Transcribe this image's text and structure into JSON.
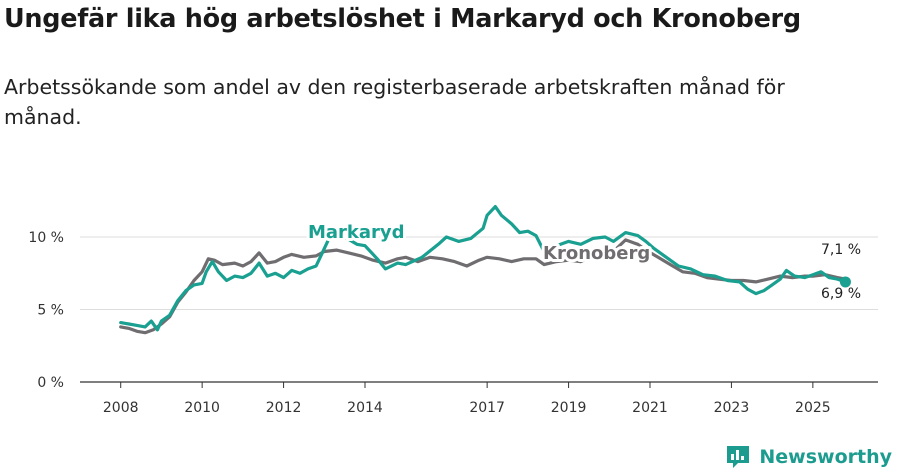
{
  "header": {
    "title": "Ungefär lika hög arbetslöshet i Markaryd och Kronoberg",
    "subtitle": "Arbetssökande som andel av den registerbaserade arbetskraften månad för månad."
  },
  "brand": {
    "name": "Newsworthy",
    "icon": "newsworthy-logo-icon"
  },
  "colors": {
    "markaryd": "#19a091",
    "kronoberg": "#6f6d70",
    "grid": "#dddddd",
    "axis": "#333333"
  },
  "chart_data": {
    "type": "line",
    "title": "Ungefär lika hög arbetslöshet i Markaryd och Kronoberg",
    "subtitle": "Arbetssökande som andel av den registerbaserade arbetskraften månad för månad.",
    "xlabel": "",
    "ylabel": "",
    "x_range": [
      2007.5,
      2026.5
    ],
    "ylim": [
      0,
      12
    ],
    "y_ticks": [
      0,
      5,
      10
    ],
    "y_tick_labels": [
      "0 %",
      "5 %",
      "10 %"
    ],
    "x_ticks": [
      2008,
      2010,
      2012,
      2014,
      2017,
      2019,
      2021,
      2023,
      2025
    ],
    "x_tick_labels": [
      "2008",
      "2010",
      "2012",
      "2014",
      "2017",
      "2019",
      "2021",
      "2023",
      "2025"
    ],
    "grid": true,
    "series": [
      {
        "name": "Markaryd",
        "color": "#19a091",
        "end_label": "6,9 %",
        "points": [
          [
            2008.0,
            4.1
          ],
          [
            2008.2,
            4.0
          ],
          [
            2008.4,
            3.9
          ],
          [
            2008.6,
            3.8
          ],
          [
            2008.75,
            4.2
          ],
          [
            2008.9,
            3.6
          ],
          [
            2009.0,
            4.2
          ],
          [
            2009.2,
            4.6
          ],
          [
            2009.4,
            5.6
          ],
          [
            2009.6,
            6.3
          ],
          [
            2009.8,
            6.7
          ],
          [
            2010.0,
            6.8
          ],
          [
            2010.1,
            7.6
          ],
          [
            2010.25,
            8.3
          ],
          [
            2010.4,
            7.6
          ],
          [
            2010.6,
            7.0
          ],
          [
            2010.8,
            7.3
          ],
          [
            2011.0,
            7.2
          ],
          [
            2011.2,
            7.5
          ],
          [
            2011.4,
            8.2
          ],
          [
            2011.6,
            7.3
          ],
          [
            2011.8,
            7.5
          ],
          [
            2012.0,
            7.2
          ],
          [
            2012.2,
            7.7
          ],
          [
            2012.4,
            7.5
          ],
          [
            2012.6,
            7.8
          ],
          [
            2012.8,
            8.0
          ],
          [
            2013.0,
            9.2
          ],
          [
            2013.2,
            10.4
          ],
          [
            2013.5,
            10.0
          ],
          [
            2013.8,
            9.5
          ],
          [
            2014.0,
            9.4
          ],
          [
            2014.3,
            8.5
          ],
          [
            2014.5,
            7.8
          ],
          [
            2014.8,
            8.2
          ],
          [
            2015.0,
            8.1
          ],
          [
            2015.4,
            8.6
          ],
          [
            2015.8,
            9.5
          ],
          [
            2016.0,
            10.0
          ],
          [
            2016.3,
            9.7
          ],
          [
            2016.6,
            9.9
          ],
          [
            2016.9,
            10.6
          ],
          [
            2017.0,
            11.5
          ],
          [
            2017.2,
            12.1
          ],
          [
            2017.35,
            11.5
          ],
          [
            2017.6,
            10.9
          ],
          [
            2017.8,
            10.3
          ],
          [
            2018.0,
            10.4
          ],
          [
            2018.2,
            10.1
          ],
          [
            2018.4,
            9.0
          ],
          [
            2018.7,
            9.4
          ],
          [
            2019.0,
            9.7
          ],
          [
            2019.3,
            9.5
          ],
          [
            2019.6,
            9.9
          ],
          [
            2019.9,
            10.0
          ],
          [
            2020.1,
            9.7
          ],
          [
            2020.4,
            10.3
          ],
          [
            2020.7,
            10.1
          ],
          [
            2020.9,
            9.7
          ],
          [
            2021.1,
            9.2
          ],
          [
            2021.4,
            8.6
          ],
          [
            2021.7,
            8.0
          ],
          [
            2022.0,
            7.8
          ],
          [
            2022.3,
            7.4
          ],
          [
            2022.6,
            7.3
          ],
          [
            2022.9,
            7.0
          ],
          [
            2023.2,
            6.9
          ],
          [
            2023.4,
            6.4
          ],
          [
            2023.6,
            6.1
          ],
          [
            2023.8,
            6.3
          ],
          [
            2024.0,
            6.7
          ],
          [
            2024.2,
            7.1
          ],
          [
            2024.35,
            7.7
          ],
          [
            2024.55,
            7.3
          ],
          [
            2024.8,
            7.2
          ],
          [
            2025.0,
            7.4
          ],
          [
            2025.2,
            7.6
          ],
          [
            2025.4,
            7.2
          ],
          [
            2025.6,
            7.1
          ],
          [
            2025.8,
            6.9
          ]
        ]
      },
      {
        "name": "Kronoberg",
        "color": "#6f6d70",
        "end_label": "7,1 %",
        "points": [
          [
            2008.0,
            3.8
          ],
          [
            2008.2,
            3.7
          ],
          [
            2008.4,
            3.5
          ],
          [
            2008.6,
            3.4
          ],
          [
            2008.8,
            3.6
          ],
          [
            2009.0,
            4.0
          ],
          [
            2009.2,
            4.5
          ],
          [
            2009.4,
            5.5
          ],
          [
            2009.6,
            6.2
          ],
          [
            2009.8,
            7.0
          ],
          [
            2010.0,
            7.6
          ],
          [
            2010.15,
            8.5
          ],
          [
            2010.3,
            8.4
          ],
          [
            2010.5,
            8.1
          ],
          [
            2010.8,
            8.2
          ],
          [
            2011.0,
            8.0
          ],
          [
            2011.2,
            8.3
          ],
          [
            2011.4,
            8.9
          ],
          [
            2011.6,
            8.2
          ],
          [
            2011.8,
            8.3
          ],
          [
            2012.0,
            8.6
          ],
          [
            2012.2,
            8.8
          ],
          [
            2012.5,
            8.6
          ],
          [
            2012.8,
            8.7
          ],
          [
            2013.0,
            9.0
          ],
          [
            2013.3,
            9.1
          ],
          [
            2013.6,
            8.9
          ],
          [
            2013.9,
            8.7
          ],
          [
            2014.2,
            8.4
          ],
          [
            2014.5,
            8.2
          ],
          [
            2014.8,
            8.5
          ],
          [
            2015.0,
            8.6
          ],
          [
            2015.3,
            8.3
          ],
          [
            2015.6,
            8.6
          ],
          [
            2015.9,
            8.5
          ],
          [
            2016.2,
            8.3
          ],
          [
            2016.5,
            8.0
          ],
          [
            2016.8,
            8.4
          ],
          [
            2017.0,
            8.6
          ],
          [
            2017.3,
            8.5
          ],
          [
            2017.6,
            8.3
          ],
          [
            2017.9,
            8.5
          ],
          [
            2018.2,
            8.5
          ],
          [
            2018.4,
            8.1
          ],
          [
            2018.7,
            8.3
          ],
          [
            2019.0,
            8.4
          ],
          [
            2019.3,
            8.3
          ],
          [
            2019.6,
            8.7
          ],
          [
            2019.9,
            8.5
          ],
          [
            2020.1,
            9.0
          ],
          [
            2020.4,
            9.8
          ],
          [
            2020.7,
            9.5
          ],
          [
            2020.9,
            9.1
          ],
          [
            2021.2,
            8.6
          ],
          [
            2021.5,
            8.1
          ],
          [
            2021.8,
            7.6
          ],
          [
            2022.1,
            7.5
          ],
          [
            2022.4,
            7.2
          ],
          [
            2022.7,
            7.1
          ],
          [
            2023.0,
            7.0
          ],
          [
            2023.3,
            7.0
          ],
          [
            2023.6,
            6.9
          ],
          [
            2023.9,
            7.1
          ],
          [
            2024.2,
            7.3
          ],
          [
            2024.5,
            7.2
          ],
          [
            2024.8,
            7.3
          ],
          [
            2025.0,
            7.3
          ],
          [
            2025.3,
            7.4
          ],
          [
            2025.6,
            7.2
          ],
          [
            2025.8,
            7.1
          ]
        ]
      }
    ],
    "annotations": [
      {
        "text": "Markaryd",
        "series": "Markaryd"
      },
      {
        "text": "Kronoberg",
        "series": "Kronoberg"
      }
    ]
  }
}
